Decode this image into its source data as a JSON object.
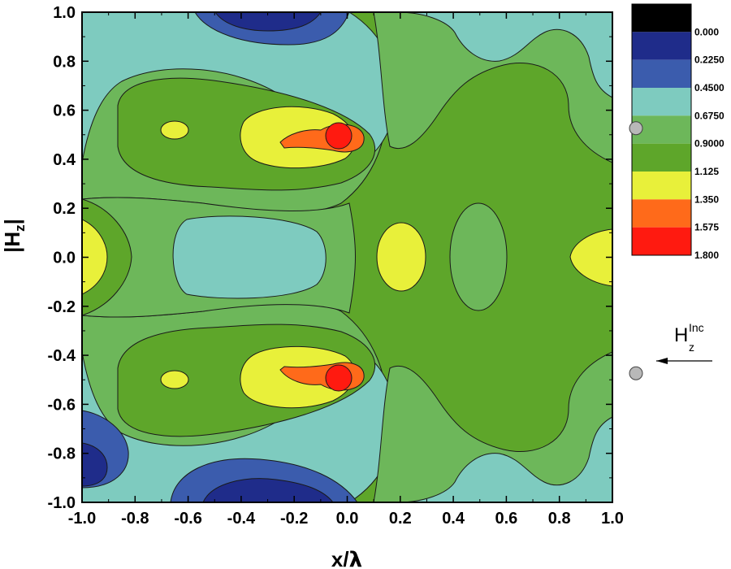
{
  "chart_data": {
    "type": "heatmap",
    "xlabel_main": "x/",
    "xlabel_sym": "λ",
    "ylabel_main": "|H",
    "ylabel_sub": "z",
    "ylabel_tail": "|",
    "xlim": [
      -1.0,
      1.0
    ],
    "ylim": [
      -1.0,
      1.0
    ],
    "x_ticks": [
      "-1.0",
      "-0.8",
      "-0.6",
      "-0.4",
      "-0.2",
      "0.0",
      "0.2",
      "0.4",
      "0.6",
      "0.8",
      "1.0"
    ],
    "y_ticks": [
      "1.0",
      "0.8",
      "0.6",
      "0.4",
      "0.2",
      "0.0",
      "-0.2",
      "-0.4",
      "-0.6",
      "-0.8",
      "-1.0"
    ],
    "levels": [
      "0.000",
      "0.2250",
      "0.4500",
      "0.6750",
      "0.9000",
      "1.125",
      "1.350",
      "1.575",
      "1.800"
    ],
    "colorbar_colors": [
      "#000000",
      "#1f2c8a",
      "#3b5cad",
      "#7ecbbf",
      "#6db75a",
      "#5ea62a",
      "#e8f03a",
      "#ff6a1a",
      "#ff1a10"
    ],
    "band_colors": {
      "b0": "#1f2c8a",
      "b1": "#3b5cad",
      "b2": "#7ecbbf",
      "b3": "#6db75a",
      "b4": "#5ea62a",
      "b5": "#e8f03a",
      "b6": "#ff6a1a",
      "b7": "#ff1a10"
    },
    "scatterers": [
      {
        "x": 0.0,
        "y": 0.5
      },
      {
        "x": 0.0,
        "y": -0.5
      }
    ],
    "incident_label": "H",
    "incident_sub": "z",
    "incident_sup": "Inc",
    "incident_direction": "left"
  }
}
